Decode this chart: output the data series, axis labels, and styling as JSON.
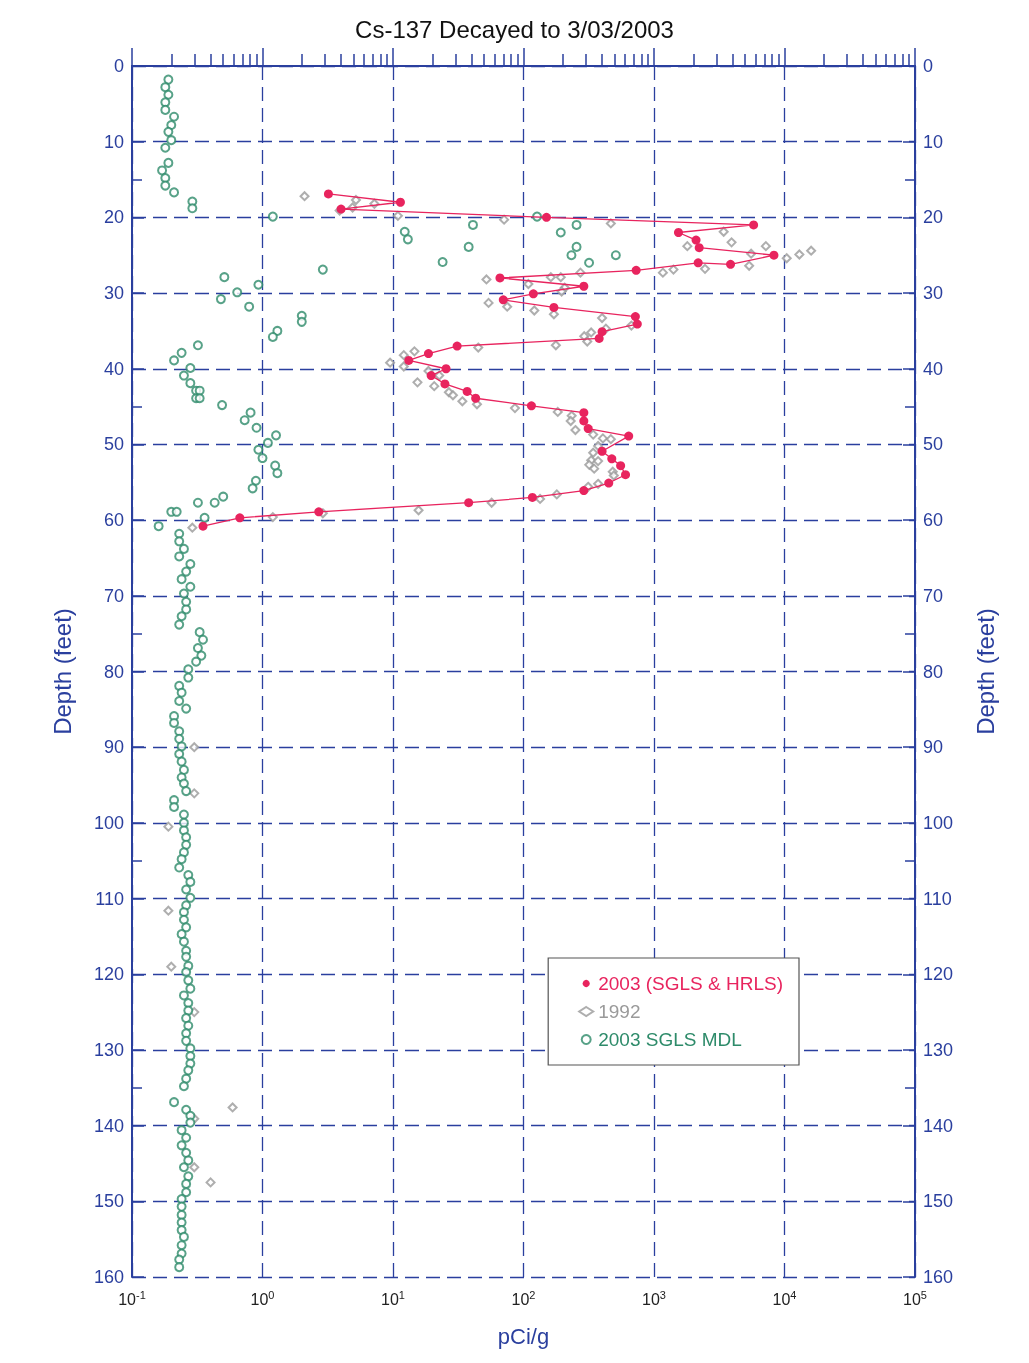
{
  "chart_data": {
    "type": "scatter",
    "title": "Cs-137 Decayed to 3/03/2003",
    "xlabel": "pCi/g",
    "ylabel": "Depth (feet)",
    "y2label": "Depth (feet)",
    "log": "x",
    "grid": true,
    "legend": "bottom right",
    "line_style": "solid",
    "xlim": [
      0.1,
      100000
    ],
    "xticks": [
      {
        "value": 0.1,
        "label": "10$^{-1}$"
      },
      {
        "value": 1,
        "label": "10$^{0}$"
      },
      {
        "value": 10,
        "label": "10$^{1}$"
      },
      {
        "value": 100,
        "label": "10$^{2}$"
      },
      {
        "value": 1000,
        "label": "10$^{3}$"
      },
      {
        "value": 10000,
        "label": "10$^{4}$"
      },
      {
        "value": 100000,
        "label": "10$^{5}$"
      }
    ],
    "ylim": [
      160,
      0
    ],
    "yticks": [
      0,
      10,
      20,
      30,
      40,
      50,
      60,
      70,
      80,
      90,
      100,
      110,
      120,
      130,
      140,
      150,
      160
    ],
    "y2lim": [
      160,
      0
    ],
    "y2ticks": [
      0,
      10,
      20,
      30,
      40,
      50,
      60,
      70,
      80,
      90,
      100,
      110,
      120,
      130,
      140,
      150,
      160
    ],
    "series": [
      {
        "name": "2003 (SGLS & HRLS)",
        "type": "line",
        "marker": "circle",
        "color": "#e8245e",
        "x": [
          3.2,
          11.4,
          4.0,
          150,
          5800,
          1540,
          2100,
          2220,
          8300,
          3860,
          2180,
          730,
          66,
          290,
          119,
          70,
          171,
          720,
          745,
          400,
          380,
          31,
          18.7,
          13.2,
          25.5,
          19.6,
          25,
          37,
          43,
          115,
          290,
          290,
          313,
          640,
          400,
          475,
          555,
          605,
          450,
          290,
          117,
          38,
          2.7,
          0.67,
          0.35
        ],
        "values": [
          16.9,
          18.0,
          18.9,
          20.0,
          21.0,
          22.0,
          23.0,
          24.0,
          25.0,
          26.2,
          26.0,
          27.0,
          28.0,
          29.1,
          30.1,
          30.9,
          31.9,
          33.1,
          34.1,
          35.1,
          36.0,
          37.0,
          38.0,
          38.9,
          40.0,
          40.9,
          42.0,
          43.0,
          43.9,
          44.9,
          45.8,
          46.9,
          47.9,
          48.9,
          50.9,
          51.9,
          52.8,
          54.0,
          55.1,
          56.1,
          57.0,
          57.7,
          58.9,
          59.7,
          60.8
        ]
      },
      {
        "name": "1992",
        "type": "scatter",
        "marker": "diamond",
        "color": "#9a9a9a",
        "x": [
          2.1,
          5.2,
          7.2,
          4.9,
          3.9,
          10.9,
          71,
          467,
          3420,
          3930,
          1800,
          7200,
          5550,
          13000,
          16000,
          10400,
          5360,
          2460,
          1410,
          1170,
          273,
          162,
          193,
          52,
          109,
          207,
          196,
          54,
          75,
          121,
          171,
          400,
          671,
          428,
          330,
          292,
          308,
          177,
          45,
          14.6,
          12.1,
          9.5,
          12.1,
          18.7,
          22.6,
          15.4,
          20.7,
          26.8,
          28.8,
          34,
          44,
          86,
          183,
          234,
          230,
          250,
          342,
          406,
          467,
          373,
          342,
          330,
          373,
          319,
          348,
          483,
          492,
          373,
          313,
          180,
          134,
          57,
          15.7,
          2.9,
          1.2,
          0.29,
          0.3,
          0.3,
          0.19,
          0.19,
          0.2,
          0.3,
          0.59,
          0.3,
          0.3,
          0.4
        ],
        "values": [
          17.2,
          17.7,
          18.2,
          18.7,
          19.1,
          19.8,
          20.3,
          20.8,
          21.9,
          23.3,
          23.8,
          23.8,
          24.8,
          24.9,
          24.4,
          25.4,
          26.4,
          26.8,
          26.9,
          27.3,
          27.3,
          27.9,
          27.9,
          28.2,
          28.8,
          29.3,
          29.8,
          31.3,
          31.8,
          32.3,
          32.8,
          33.3,
          34.3,
          34.7,
          35.2,
          35.7,
          36.4,
          36.9,
          37.2,
          37.7,
          38.2,
          39.2,
          39.7,
          40.3,
          40.9,
          41.8,
          42.3,
          43.1,
          43.5,
          44.3,
          44.7,
          45.2,
          45.7,
          46.2,
          46.9,
          48.1,
          48.7,
          49.2,
          49.3,
          50.2,
          51.1,
          52.1,
          52.2,
          52.7,
          53.2,
          53.6,
          54.1,
          55.2,
          55.6,
          56.6,
          57.2,
          57.7,
          58.7,
          59.1,
          59.6,
          61.0,
          90.0,
          96.1,
          100.5,
          111.6,
          119.0,
          125.0,
          137.6,
          139.1,
          145.5,
          147.5
        ]
      },
      {
        "name": "2003 SGLS MDL",
        "type": "scatter",
        "marker": "circle",
        "color": "#2e8b6a",
        "x": [
          0.19,
          0.18,
          0.19,
          0.18,
          0.18,
          0.21,
          0.2,
          0.19,
          0.2,
          0.18,
          0.19,
          0.17,
          0.18,
          0.18,
          0.21,
          0.29,
          0.29,
          1.2,
          41,
          12.3,
          13,
          38,
          24,
          2.9,
          127,
          255,
          193,
          255,
          233,
          510,
          318,
          0.51,
          0.93,
          0.64,
          0.48,
          0.79,
          2.0,
          2.0,
          1.3,
          1.2,
          0.32,
          0.24,
          0.21,
          0.28,
          0.25,
          0.28,
          0.31,
          0.33,
          0.31,
          0.33,
          0.49,
          0.81,
          0.73,
          0.9,
          1.27,
          1.1,
          0.93,
          1.0,
          1.25,
          1.3,
          0.89,
          0.84,
          0.5,
          0.43,
          0.32,
          0.2,
          0.22,
          0.36,
          0.16,
          0.23,
          0.23,
          0.25,
          0.23,
          0.28,
          0.26,
          0.24,
          0.28,
          0.25,
          0.26,
          0.26,
          0.24,
          0.23,
          0.33,
          0.35,
          0.32,
          0.34,
          0.31,
          0.27,
          0.27,
          0.23,
          0.24,
          0.23,
          0.26,
          0.21,
          0.21,
          0.23,
          0.23,
          0.24,
          0.23,
          0.24,
          0.25,
          0.24,
          0.25,
          0.26,
          0.21,
          0.21,
          0.25,
          0.25,
          0.25,
          0.26,
          0.26,
          0.25,
          0.24,
          0.23,
          0.27,
          0.28,
          0.26,
          0.28,
          0.26,
          0.25,
          0.25,
          0.26,
          0.24,
          0.25,
          0.26,
          0.26,
          0.27,
          0.26,
          0.27,
          0.28,
          0.25,
          0.27,
          0.27,
          0.26,
          0.27,
          0.26,
          0.26,
          0.28,
          0.28,
          0.28,
          0.27,
          0.26,
          0.25,
          0.21,
          0.26,
          0.28,
          0.28,
          0.24,
          0.26,
          0.24,
          0.26,
          0.27,
          0.25,
          0.27,
          0.26,
          0.26,
          0.24,
          0.24,
          0.24,
          0.24,
          0.24,
          0.25,
          0.24,
          0.24,
          0.23,
          0.23
        ],
        "values": [
          1.8,
          2.8,
          3.8,
          4.8,
          5.8,
          6.7,
          7.8,
          8.7,
          9.8,
          10.8,
          12.8,
          13.8,
          14.8,
          15.8,
          16.7,
          17.9,
          18.8,
          19.9,
          21.0,
          21.9,
          22.9,
          23.9,
          25.9,
          26.9,
          19.9,
          21.0,
          22.0,
          23.9,
          25.0,
          25.0,
          26.0,
          27.9,
          28.9,
          29.9,
          30.8,
          31.8,
          33.0,
          33.8,
          35.0,
          35.8,
          36.9,
          37.9,
          38.9,
          39.9,
          40.9,
          41.9,
          42.9,
          42.9,
          43.9,
          43.9,
          44.8,
          45.8,
          46.8,
          47.8,
          48.8,
          49.8,
          50.7,
          51.8,
          52.8,
          53.8,
          54.8,
          55.8,
          56.9,
          57.7,
          57.7,
          58.9,
          58.9,
          59.7,
          60.8,
          61.8,
          62.8,
          63.8,
          64.8,
          65.8,
          66.8,
          67.8,
          68.8,
          69.7,
          70.8,
          71.8,
          72.7,
          73.8,
          74.8,
          75.8,
          76.9,
          77.9,
          78.7,
          79.7,
          80.8,
          81.9,
          82.8,
          83.9,
          84.9,
          85.9,
          86.8,
          87.9,
          88.9,
          89.9,
          90.9,
          91.9,
          93.0,
          94.0,
          94.8,
          95.8,
          97.0,
          97.9,
          98.9,
          100.0,
          101.0,
          101.9,
          102.9,
          103.9,
          104.8,
          105.9,
          106.9,
          107.8,
          108.8,
          109.9,
          110.9,
          111.8,
          112.8,
          113.8,
          114.7,
          115.7,
          116.9,
          117.7,
          118.9,
          119.7,
          120.8,
          121.9,
          122.8,
          123.8,
          124.8,
          125.8,
          126.8,
          127.8,
          128.8,
          129.8,
          130.8,
          131.8,
          132.7,
          133.8,
          134.8,
          136.9,
          137.9,
          138.7,
          139.6,
          140.6,
          141.6,
          142.6,
          143.6,
          144.6,
          145.5,
          146.7,
          147.7,
          148.8,
          149.7,
          150.7,
          151.8,
          152.8,
          153.8,
          154.7,
          155.8,
          156.9,
          157.7,
          158.7
        ]
      }
    ]
  }
}
